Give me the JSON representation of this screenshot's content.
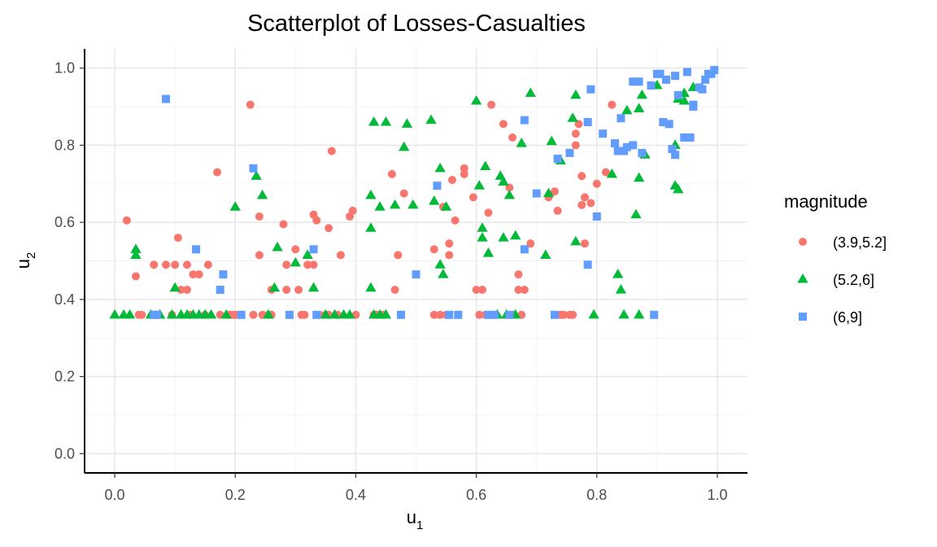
{
  "chart_data": {
    "type": "scatter",
    "title": "Scatterplot of Losses-Casualties",
    "xlabel": "u",
    "xlabel_sub": "1",
    "ylabel": "u",
    "ylabel_sub": "2",
    "xlim": [
      -0.05,
      1.05
    ],
    "ylim": [
      -0.05,
      1.05
    ],
    "xticks": [
      0.0,
      0.2,
      0.4,
      0.6,
      0.8,
      1.0
    ],
    "yticks": [
      0.0,
      0.2,
      0.4,
      0.6,
      0.8,
      1.0
    ],
    "xtick_labels": [
      "0.0",
      "0.2",
      "0.4",
      "0.6",
      "0.8",
      "1.0"
    ],
    "ytick_labels": [
      "0.0",
      "0.2",
      "0.4",
      "0.6",
      "0.8",
      "1.0"
    ],
    "grid": true,
    "legend": {
      "title": "magnitude",
      "placement": "right"
    },
    "series": [
      {
        "name": "(3.9,5.2]",
        "color": "#f8766d",
        "shape": "circle",
        "points": [
          [
            0.02,
            0.605
          ],
          [
            0.035,
            0.46
          ],
          [
            0.04,
            0.36
          ],
          [
            0.045,
            0.36
          ],
          [
            0.065,
            0.49
          ],
          [
            0.07,
            0.36
          ],
          [
            0.085,
            0.49
          ],
          [
            0.095,
            0.36
          ],
          [
            0.1,
            0.49
          ],
          [
            0.105,
            0.56
          ],
          [
            0.11,
            0.425
          ],
          [
            0.12,
            0.49
          ],
          [
            0.12,
            0.425
          ],
          [
            0.125,
            0.36
          ],
          [
            0.13,
            0.465
          ],
          [
            0.14,
            0.465
          ],
          [
            0.15,
            0.36
          ],
          [
            0.155,
            0.49
          ],
          [
            0.17,
            0.73
          ],
          [
            0.175,
            0.36
          ],
          [
            0.19,
            0.36
          ],
          [
            0.195,
            0.36
          ],
          [
            0.2,
            0.36
          ],
          [
            0.225,
            0.905
          ],
          [
            0.23,
            0.36
          ],
          [
            0.24,
            0.515
          ],
          [
            0.24,
            0.615
          ],
          [
            0.245,
            0.36
          ],
          [
            0.255,
            0.36
          ],
          [
            0.26,
            0.425
          ],
          [
            0.26,
            0.36
          ],
          [
            0.28,
            0.595
          ],
          [
            0.285,
            0.49
          ],
          [
            0.285,
            0.425
          ],
          [
            0.3,
            0.53
          ],
          [
            0.305,
            0.425
          ],
          [
            0.31,
            0.36
          ],
          [
            0.315,
            0.36
          ],
          [
            0.32,
            0.49
          ],
          [
            0.33,
            0.49
          ],
          [
            0.33,
            0.62
          ],
          [
            0.335,
            0.605
          ],
          [
            0.34,
            0.36
          ],
          [
            0.35,
            0.36
          ],
          [
            0.355,
            0.36
          ],
          [
            0.355,
            0.585
          ],
          [
            0.36,
            0.785
          ],
          [
            0.37,
            0.36
          ],
          [
            0.375,
            0.515
          ],
          [
            0.39,
            0.615
          ],
          [
            0.395,
            0.63
          ],
          [
            0.4,
            0.36
          ],
          [
            0.43,
            0.36
          ],
          [
            0.435,
            0.36
          ],
          [
            0.445,
            0.36
          ],
          [
            0.46,
            0.725
          ],
          [
            0.465,
            0.425
          ],
          [
            0.47,
            0.515
          ],
          [
            0.48,
            0.675
          ],
          [
            0.53,
            0.53
          ],
          [
            0.53,
            0.36
          ],
          [
            0.54,
            0.36
          ],
          [
            0.545,
            0.64
          ],
          [
            0.55,
            0.36
          ],
          [
            0.555,
            0.515
          ],
          [
            0.555,
            0.545
          ],
          [
            0.56,
            0.71
          ],
          [
            0.565,
            0.605
          ],
          [
            0.58,
            0.725
          ],
          [
            0.58,
            0.74
          ],
          [
            0.595,
            0.665
          ],
          [
            0.6,
            0.425
          ],
          [
            0.605,
            0.36
          ],
          [
            0.61,
            0.425
          ],
          [
            0.615,
            0.36
          ],
          [
            0.62,
            0.625
          ],
          [
            0.625,
            0.905
          ],
          [
            0.645,
            0.855
          ],
          [
            0.655,
            0.69
          ],
          [
            0.66,
            0.36
          ],
          [
            0.66,
            0.82
          ],
          [
            0.67,
            0.425
          ],
          [
            0.67,
            0.465
          ],
          [
            0.675,
            0.36
          ],
          [
            0.68,
            0.425
          ],
          [
            0.69,
            0.545
          ],
          [
            0.72,
            0.665
          ],
          [
            0.73,
            0.68
          ],
          [
            0.735,
            0.63
          ],
          [
            0.74,
            0.36
          ],
          [
            0.745,
            0.36
          ],
          [
            0.755,
            0.36
          ],
          [
            0.76,
            0.36
          ],
          [
            0.765,
            0.8
          ],
          [
            0.765,
            0.83
          ],
          [
            0.77,
            0.855
          ],
          [
            0.775,
            0.72
          ],
          [
            0.775,
            0.645
          ],
          [
            0.78,
            0.665
          ],
          [
            0.78,
            0.545
          ],
          [
            0.785,
            0.86
          ],
          [
            0.79,
            0.65
          ],
          [
            0.8,
            0.7
          ],
          [
            0.815,
            0.73
          ],
          [
            0.825,
            0.905
          ]
        ]
      },
      {
        "name": "(5.2,6]",
        "color": "#00ba38",
        "shape": "triangle",
        "points": [
          [
            0.0,
            0.36
          ],
          [
            0.015,
            0.36
          ],
          [
            0.025,
            0.36
          ],
          [
            0.035,
            0.53
          ],
          [
            0.035,
            0.515
          ],
          [
            0.06,
            0.36
          ],
          [
            0.075,
            0.36
          ],
          [
            0.095,
            0.36
          ],
          [
            0.1,
            0.43
          ],
          [
            0.11,
            0.36
          ],
          [
            0.12,
            0.36
          ],
          [
            0.13,
            0.36
          ],
          [
            0.14,
            0.36
          ],
          [
            0.15,
            0.36
          ],
          [
            0.16,
            0.36
          ],
          [
            0.185,
            0.36
          ],
          [
            0.2,
            0.64
          ],
          [
            0.235,
            0.72
          ],
          [
            0.245,
            0.67
          ],
          [
            0.255,
            0.36
          ],
          [
            0.265,
            0.43
          ],
          [
            0.27,
            0.535
          ],
          [
            0.3,
            0.495
          ],
          [
            0.32,
            0.515
          ],
          [
            0.33,
            0.43
          ],
          [
            0.35,
            0.36
          ],
          [
            0.365,
            0.36
          ],
          [
            0.38,
            0.36
          ],
          [
            0.39,
            0.36
          ],
          [
            0.425,
            0.67
          ],
          [
            0.425,
            0.585
          ],
          [
            0.425,
            0.43
          ],
          [
            0.43,
            0.86
          ],
          [
            0.43,
            0.36
          ],
          [
            0.44,
            0.36
          ],
          [
            0.44,
            0.64
          ],
          [
            0.45,
            0.86
          ],
          [
            0.45,
            0.36
          ],
          [
            0.465,
            0.645
          ],
          [
            0.48,
            0.795
          ],
          [
            0.485,
            0.855
          ],
          [
            0.495,
            0.645
          ],
          [
            0.525,
            0.865
          ],
          [
            0.53,
            0.655
          ],
          [
            0.54,
            0.74
          ],
          [
            0.54,
            0.49
          ],
          [
            0.545,
            0.465
          ],
          [
            0.55,
            0.64
          ],
          [
            0.6,
            0.915
          ],
          [
            0.605,
            0.695
          ],
          [
            0.61,
            0.585
          ],
          [
            0.61,
            0.56
          ],
          [
            0.615,
            0.745
          ],
          [
            0.62,
            0.52
          ],
          [
            0.635,
            0.36
          ],
          [
            0.64,
            0.72
          ],
          [
            0.645,
            0.705
          ],
          [
            0.645,
            0.56
          ],
          [
            0.65,
            0.36
          ],
          [
            0.655,
            0.67
          ],
          [
            0.665,
            0.565
          ],
          [
            0.665,
            0.36
          ],
          [
            0.675,
            0.805
          ],
          [
            0.69,
            0.935
          ],
          [
            0.715,
            0.515
          ],
          [
            0.72,
            0.675
          ],
          [
            0.725,
            0.81
          ],
          [
            0.74,
            0.76
          ],
          [
            0.76,
            0.87
          ],
          [
            0.765,
            0.93
          ],
          [
            0.765,
            0.55
          ],
          [
            0.795,
            0.36
          ],
          [
            0.825,
            0.725
          ],
          [
            0.835,
            0.465
          ],
          [
            0.84,
            0.425
          ],
          [
            0.845,
            0.36
          ],
          [
            0.85,
            0.89
          ],
          [
            0.865,
            0.62
          ],
          [
            0.87,
            0.895
          ],
          [
            0.87,
            0.36
          ],
          [
            0.87,
            0.715
          ],
          [
            0.875,
            0.93
          ],
          [
            0.88,
            0.775
          ],
          [
            0.9,
            0.955
          ],
          [
            0.93,
            0.8
          ],
          [
            0.93,
            0.695
          ],
          [
            0.935,
            0.92
          ],
          [
            0.935,
            0.685
          ],
          [
            0.945,
            0.915
          ],
          [
            0.945,
            0.935
          ],
          [
            0.96,
            0.95
          ]
        ]
      },
      {
        "name": "(6,9]",
        "color": "#619cff",
        "shape": "square",
        "points": [
          [
            0.065,
            0.36
          ],
          [
            0.07,
            0.36
          ],
          [
            0.085,
            0.92
          ],
          [
            0.135,
            0.53
          ],
          [
            0.175,
            0.425
          ],
          [
            0.18,
            0.465
          ],
          [
            0.21,
            0.36
          ],
          [
            0.23,
            0.74
          ],
          [
            0.29,
            0.36
          ],
          [
            0.33,
            0.53
          ],
          [
            0.335,
            0.36
          ],
          [
            0.475,
            0.36
          ],
          [
            0.5,
            0.465
          ],
          [
            0.535,
            0.695
          ],
          [
            0.555,
            0.36
          ],
          [
            0.57,
            0.36
          ],
          [
            0.62,
            0.36
          ],
          [
            0.63,
            0.36
          ],
          [
            0.655,
            0.36
          ],
          [
            0.68,
            0.53
          ],
          [
            0.68,
            0.865
          ],
          [
            0.7,
            0.675
          ],
          [
            0.73,
            0.36
          ],
          [
            0.735,
            0.765
          ],
          [
            0.755,
            0.78
          ],
          [
            0.785,
            0.49
          ],
          [
            0.785,
            0.86
          ],
          [
            0.79,
            0.945
          ],
          [
            0.8,
            0.615
          ],
          [
            0.81,
            0.83
          ],
          [
            0.83,
            0.805
          ],
          [
            0.835,
            0.785
          ],
          [
            0.84,
            0.87
          ],
          [
            0.845,
            0.785
          ],
          [
            0.85,
            0.795
          ],
          [
            0.86,
            0.8
          ],
          [
            0.86,
            0.965
          ],
          [
            0.87,
            0.965
          ],
          [
            0.875,
            0.78
          ],
          [
            0.89,
            0.955
          ],
          [
            0.895,
            0.36
          ],
          [
            0.9,
            0.985
          ],
          [
            0.905,
            0.985
          ],
          [
            0.91,
            0.86
          ],
          [
            0.915,
            0.97
          ],
          [
            0.92,
            0.855
          ],
          [
            0.925,
            0.79
          ],
          [
            0.93,
            0.775
          ],
          [
            0.93,
            0.98
          ],
          [
            0.935,
            0.93
          ],
          [
            0.945,
            0.82
          ],
          [
            0.95,
            0.99
          ],
          [
            0.955,
            0.82
          ],
          [
            0.96,
            0.905
          ],
          [
            0.96,
            0.9
          ],
          [
            0.97,
            0.95
          ],
          [
            0.975,
            0.945
          ],
          [
            0.98,
            0.97
          ],
          [
            0.985,
            0.985
          ],
          [
            0.99,
            0.985
          ],
          [
            0.995,
            0.995
          ]
        ]
      }
    ]
  }
}
